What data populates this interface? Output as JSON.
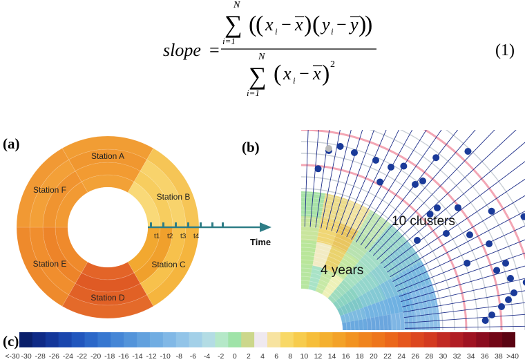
{
  "equation": {
    "lhs": "slope",
    "sum_upper": "N",
    "sum_lower": "i=1",
    "numerator_body": "((x_i − x̄)(y_i − ȳ))",
    "denominator_body": "(x_i − x̄)²",
    "number": "(1)"
  },
  "panels": {
    "a": {
      "label": "(a)",
      "stations": [
        "Station A",
        "Station B",
        "Station C",
        "Station D",
        "Station E",
        "Station F"
      ],
      "time_ticks": [
        "t1",
        "t2",
        "t3",
        "t4"
      ],
      "axis_label": "Time"
    },
    "b": {
      "label": "(b)",
      "clusters_label": "10 clusters",
      "years_label": "4 years"
    },
    "c": {
      "label": "(c)",
      "tick_labels": [
        "<-30",
        "-30",
        "-28",
        "-26",
        "-24",
        "-22",
        "-20",
        "-18",
        "-16",
        "-14",
        "-12",
        "-10",
        "-8",
        "-6",
        "-4",
        "-2",
        "0",
        "2",
        "4",
        "6",
        "8",
        "10",
        "12",
        "14",
        "16",
        "18",
        "20",
        "22",
        "24",
        "26",
        "28",
        "30",
        "32",
        "34",
        "36",
        "38",
        ">40"
      ],
      "colors": [
        "#0a1f6b",
        "#0f2a86",
        "#14379a",
        "#1a46ad",
        "#2156bd",
        "#2b67c8",
        "#3777d0",
        "#4586d6",
        "#5394da",
        "#62a1de",
        "#71ade2",
        "#81b8e6",
        "#92c4e8",
        "#a3d0e8",
        "#b3dce4",
        "#b5e8c8",
        "#9fe3a8",
        "#ccd78b",
        "#efe9f0",
        "#f7e3a0",
        "#f8d867",
        "#f7cc4d",
        "#f6be3a",
        "#f4b02f",
        "#f3a228",
        "#f29321",
        "#f0841e",
        "#ee761c",
        "#eb671b",
        "#e5561d",
        "#dc471f",
        "#d33a20",
        "#c12a23",
        "#b11e25",
        "#9f1322",
        "#8a0c1f",
        "#720717",
        "#5a0412"
      ]
    }
  }
}
